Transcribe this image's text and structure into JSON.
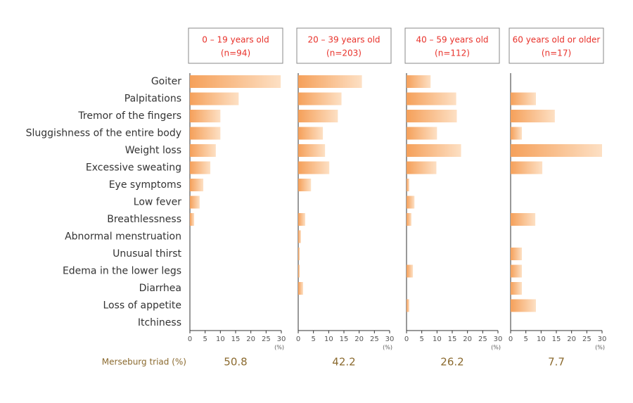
{
  "categories": [
    "Goiter",
    "Palpitations",
    "Tremor of the fingers",
    "Sluggishness of the entire body",
    "Weight loss",
    "Excessive sweating",
    "Eye symptoms",
    "Low fever",
    "Breathlessness",
    "Abnormal menstruation",
    "Unusual thirst",
    "Edema in the lower legs",
    "Diarrhea",
    "Loss of appetite",
    "Itchiness"
  ],
  "triad_label": "Merseburg triad (%)",
  "chart_data": [
    {
      "type": "bar",
      "orientation": "horizontal",
      "title": "0 – 19 years old",
      "subtitle": "(n=94)",
      "color": "#f5a05a",
      "values": [
        29.8,
        16,
        10,
        10,
        8.5,
        6.7,
        4.4,
        3.2,
        1.4,
        0,
        0,
        0,
        0,
        0,
        0
      ],
      "xlim": [
        0,
        30
      ],
      "xticks": [
        0,
        5,
        10,
        15,
        20,
        25,
        30
      ],
      "xlabel": "(%)",
      "merseburg_triad": 50.8
    },
    {
      "type": "bar",
      "orientation": "horizontal",
      "title": "20 – 39 years old",
      "subtitle": "(n=203)",
      "color": "#f5a05a",
      "values": [
        20.9,
        14.2,
        13,
        8.1,
        8.8,
        10.2,
        4.2,
        0,
        2.3,
        0.9,
        0.5,
        0.5,
        1.6,
        0,
        0
      ],
      "xlim": [
        0,
        30
      ],
      "xticks": [
        0,
        5,
        10,
        15,
        20,
        25,
        30
      ],
      "xlabel": "(%)",
      "merseburg_triad": 42.2
    },
    {
      "type": "bar",
      "orientation": "horizontal",
      "title": "40 – 59 years old",
      "subtitle": "(n=112)",
      "color": "#f5a05a",
      "values": [
        7.9,
        16.3,
        16.5,
        10,
        17.9,
        9.8,
        0.9,
        2.6,
        1.6,
        0,
        0,
        2.1,
        0,
        0.9,
        0
      ],
      "xlim": [
        0,
        30
      ],
      "xticks": [
        0,
        5,
        10,
        15,
        20,
        25,
        30
      ],
      "xlabel": "(%)",
      "merseburg_triad": 26.2
    },
    {
      "type": "bar",
      "orientation": "horizontal",
      "title": "60 years old or older",
      "subtitle": "(n=17)",
      "color": "#f5a05a",
      "values": [
        0,
        8.3,
        14.5,
        3.7,
        30,
        10.4,
        0,
        0,
        8.1,
        0,
        3.7,
        3.7,
        3.7,
        8.3,
        0
      ],
      "xlim": [
        0,
        30
      ],
      "xticks": [
        0,
        5,
        10,
        15,
        20,
        25,
        30
      ],
      "xlabel": "(%)",
      "merseburg_triad": 7.7
    }
  ]
}
